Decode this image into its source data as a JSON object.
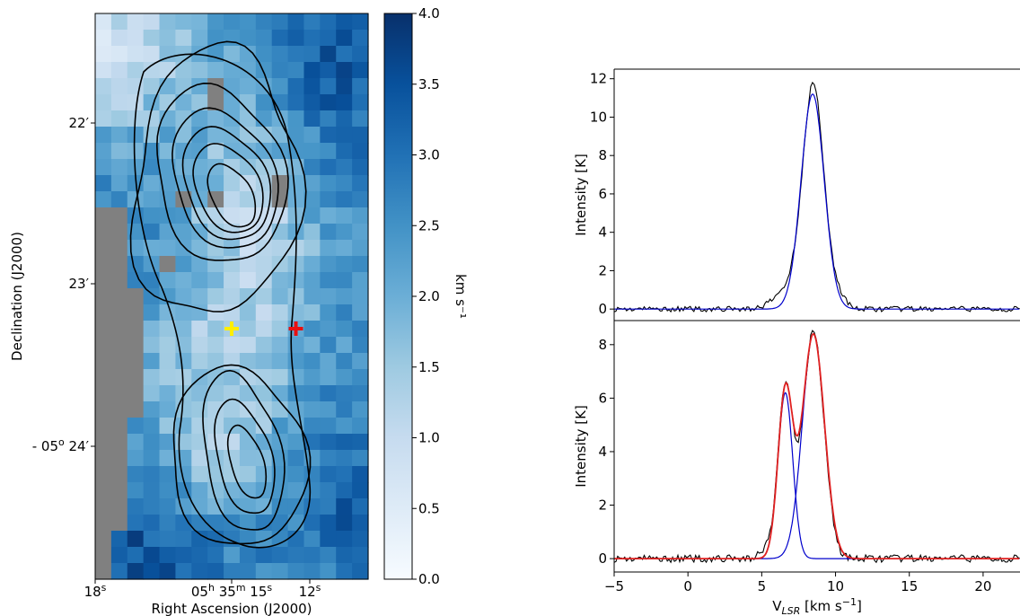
{
  "chart_data": [
    {
      "type": "heatmap",
      "xlabel": "Right Ascension (J2000)",
      "ylabel": "Declination (J2000)",
      "x_ticks": [
        {
          "sub": "s",
          "label": "18"
        },
        {
          "label": "05",
          "sub": "h",
          "label2": " 35",
          "sub2": "m",
          "label3": " 15",
          "sub3": "s"
        },
        {
          "sub": "s",
          "label": "12"
        }
      ],
      "y_ticks": [
        {
          "label": "22′"
        },
        {
          "label": "23′"
        },
        {
          "label": "- 05",
          "sup": "o",
          "label2": " 24′"
        }
      ],
      "colorbar": {
        "label": "km s⁻¹",
        "range": [
          0.0,
          4.0
        ],
        "ticks": [
          "0.0",
          "0.5",
          "1.0",
          "1.5",
          "2.0",
          "2.5",
          "3.0",
          "3.5",
          "4.0"
        ],
        "colormap": "Blues",
        "low_color": "#f7fbff",
        "high_color": "#08306b"
      },
      "markers": [
        {
          "name": "yellow-plus",
          "color": "#ffee00",
          "col": 8,
          "row": 19
        },
        {
          "name": "red-plus",
          "color": "#e81010",
          "col": 12,
          "row": 19
        }
      ],
      "grid": {
        "cols": 17,
        "rows": 35
      },
      "nan_color": "#808080"
    },
    {
      "type": "line",
      "ylabel": "Intensity [K]",
      "xlim": [
        -5,
        22.5
      ],
      "ylim": [
        -0.6,
        12.5
      ],
      "y_ticks": [
        "0",
        "2",
        "4",
        "6",
        "8",
        "10",
        "12"
      ],
      "series": [
        {
          "color": "#000000",
          "kind": "observed",
          "peak": 11.8,
          "center": 8.5,
          "sigma": 0.8
        },
        {
          "color": "#0000cc",
          "kind": "gaussian-fit",
          "components": [
            {
              "amp": 11.2,
              "center": 8.45,
              "sigma": 0.78
            }
          ]
        }
      ]
    },
    {
      "type": "line",
      "xlabel": "V_LSR [km s⁻¹]",
      "ylabel": "Intensity [K]",
      "xlim": [
        -5,
        22.5
      ],
      "ylim": [
        -0.5,
        8.9
      ],
      "x_ticks": [
        "−5",
        "0",
        "5",
        "10",
        "15",
        "20"
      ],
      "y_ticks": [
        "0",
        "2",
        "4",
        "6",
        "8"
      ],
      "series": [
        {
          "color": "#000000",
          "kind": "observed"
        },
        {
          "color": "#0000cc",
          "kind": "component",
          "amp": 6.2,
          "center": 6.6,
          "sigma": 0.5
        },
        {
          "color": "#0000cc",
          "kind": "component",
          "amp": 8.4,
          "center": 8.5,
          "sigma": 0.75
        },
        {
          "color": "#e02020",
          "kind": "total-fit"
        }
      ]
    }
  ]
}
